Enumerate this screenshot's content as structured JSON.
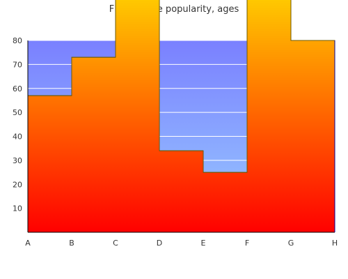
{
  "chart_data": {
    "type": "area",
    "title": "Fluconazole popularity, ages",
    "xlabel": "",
    "ylabel": "",
    "categories": [
      "A",
      "B",
      "C",
      "D",
      "E",
      "F",
      "G",
      "H"
    ],
    "values": [
      57,
      73,
      100,
      34,
      25,
      100,
      80,
      80
    ],
    "y_ticks": [
      10,
      20,
      30,
      40,
      50,
      60,
      70,
      80
    ],
    "ylim": [
      0,
      80
    ],
    "step": "post",
    "grid": true,
    "legend": "none",
    "colors": {
      "background_top": "#7a80ff",
      "background_bottom": "#99ccff",
      "fill_top": "#ffc800",
      "fill_bottom": "#ff0000",
      "outline": "#6e5a00",
      "axis": "#000000",
      "grid": "#ffffff"
    }
  }
}
